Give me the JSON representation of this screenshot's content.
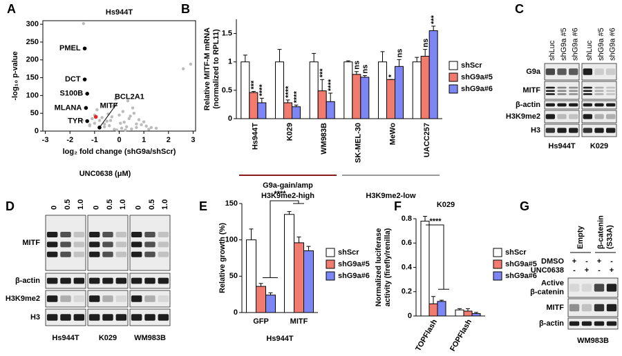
{
  "panel_labels": [
    "A",
    "B",
    "C",
    "D",
    "E",
    "F",
    "G"
  ],
  "chart_data": [
    {
      "type": "scatter",
      "title": "Hs944T",
      "title_color": "#8b1a1a",
      "x_label": "log₂ fold change (shG9a/shScr)",
      "y_label": "-log₁₀ p-value",
      "xlim": [
        -3.1,
        3.1
      ],
      "xticks": [
        -3,
        -2,
        -1,
        0,
        1,
        2,
        3
      ],
      "ylim": [
        0,
        310
      ],
      "yticks": [
        0,
        50,
        100,
        150,
        200,
        250,
        300
      ],
      "series": [
        {
          "color": "#bbbbbb",
          "x": [
            -0.2,
            0.1,
            0.3,
            -0.4,
            0.5,
            -0.6,
            0.2,
            -0.1,
            0.7,
            -0.8,
            0.9,
            -0.3,
            0.4,
            -0.5,
            0.0,
            1.1,
            -1.0,
            0.6,
            -0.7,
            0.8,
            -1.2,
            1.3,
            -0.9,
            0.15,
            -0.25,
            0.45,
            -0.45,
            1.5,
            -1.5,
            0.35,
            -0.15,
            1.0,
            -1.1,
            0.55,
            2.6,
            2.9,
            -1.45,
            -1.2,
            -1.0,
            0.7,
            1.2,
            -0.6,
            0.05,
            -0.35,
            0.25
          ],
          "y": [
            5,
            8,
            12,
            15,
            6,
            20,
            25,
            3,
            10,
            30,
            18,
            40,
            35,
            28,
            45,
            14,
            22,
            50,
            38,
            32,
            18,
            10,
            60,
            55,
            70,
            42,
            48,
            8,
            30,
            85,
            90,
            26,
            35,
            65,
            175,
            188,
            302,
            15,
            45,
            20,
            5,
            12,
            22,
            30,
            3
          ]
        },
        {
          "color": "#000000",
          "x": [
            -1.4,
            -1.4,
            -1.3,
            -1.35,
            -1.3,
            -0.8
          ],
          "y": [
            232,
            145,
            105,
            65,
            28,
            10
          ],
          "point_labels": [
            "PMEL",
            "DCT",
            "S100B",
            "MLANA",
            "TYR",
            "BCL2A1"
          ]
        },
        {
          "color": "#e0261f",
          "x": [
            -0.95
          ],
          "y": [
            40
          ],
          "point_labels": [
            "MITF"
          ]
        }
      ]
    },
    {
      "type": "bar",
      "y_label": [
        "Relative MITF-M mRNA",
        "(normalized to RPL11)"
      ],
      "categories": [
        "Hs944T",
        "K029",
        "WM983B",
        "SK-MEL-30",
        "MeWo",
        "UACC257"
      ],
      "category_colors": [
        "#8b1a1a",
        "#8b1a1a",
        "#8b1a1a",
        "#999999",
        "#999999",
        "#999999"
      ],
      "group_labels": [
        [
          "G9a-gain/amp",
          "H3K9me2-high"
        ],
        [
          "H3K9me2-low"
        ]
      ],
      "group_colors": [
        "#8b1a1a",
        "#999999"
      ],
      "ylim": [
        0,
        1.75
      ],
      "yticks": [
        0,
        0.5,
        1,
        1.5
      ],
      "series": [
        {
          "name": "shScr",
          "color": "#ffffff",
          "values": [
            1.0,
            1.0,
            1.0,
            1.0,
            1.0,
            1.0
          ],
          "errors": [
            0.12,
            0.22,
            0.15,
            0.02,
            0.18,
            0.08
          ]
        },
        {
          "name": "shG9a#5",
          "color": "#f07b6e",
          "values": [
            0.46,
            0.28,
            0.49,
            0.78,
            0.69,
            1.1
          ],
          "errors": [
            0.02,
            0.05,
            0.2,
            0.05,
            0.0,
            0.12
          ],
          "significance": [
            "***",
            "****",
            "***",
            "ns",
            "*",
            "ns"
          ]
        },
        {
          "name": "shG9a#6",
          "color": "#7d86f5",
          "values": [
            0.28,
            0.21,
            0.3,
            0.73,
            0.92,
            1.55
          ],
          "errors": [
            0.08,
            0.03,
            0.15,
            0.03,
            0.12,
            0.08
          ],
          "significance": [
            "****",
            "****",
            "****",
            "ns",
            "ns",
            "***"
          ]
        }
      ]
    },
    {
      "type": "bar",
      "y_label": [
        "Relative growth (%)"
      ],
      "subtitle": "Hs944T",
      "subtitle_color": "#8b1a1a",
      "categories": [
        "GFP",
        "MITF"
      ],
      "annotations": [
        "****"
      ],
      "ylim": [
        0,
        150
      ],
      "yticks": [
        0,
        50,
        100,
        150
      ],
      "series": [
        {
          "name": "shScr",
          "color": "#ffffff",
          "values": [
            100,
            135
          ],
          "errors": [
            15,
            4
          ]
        },
        {
          "name": "shG9a#5",
          "color": "#f07b6e",
          "values": [
            36,
            96
          ],
          "errors": [
            4,
            8
          ]
        },
        {
          "name": "shG9a#6",
          "color": "#7d86f5",
          "values": [
            24,
            85
          ],
          "errors": [
            3,
            6
          ]
        }
      ]
    },
    {
      "type": "bar",
      "title": "K029",
      "title_color": "#8b1a1a",
      "y_label": [
        "Normalized luciferase",
        "activity (firefly/renilla)"
      ],
      "categories": [
        "TOPFlash",
        "FOPFlash"
      ],
      "annotations": [
        "****"
      ],
      "ylim": [
        0,
        0.8
      ],
      "yticks": [
        0,
        0.2,
        0.4,
        0.6,
        0.8
      ],
      "series": [
        {
          "name": "shScr",
          "color": "#ffffff",
          "values": [
            0.78,
            0.05
          ],
          "errors": [
            0.04,
            0.01
          ]
        },
        {
          "name": "shG9a#5",
          "color": "#f07b6e",
          "values": [
            0.1,
            0.04
          ],
          "errors": [
            0.06,
            0.02
          ]
        },
        {
          "name": "shG9a#6",
          "color": "#7d86f5",
          "values": [
            0.12,
            0.02
          ],
          "errors": [
            0.01,
            0.01
          ]
        }
      ]
    }
  ],
  "blots": {
    "C": {
      "columns": [
        "shLuc",
        "shG9a #5",
        "shG9a #6",
        "shLuc",
        "shG9a #5",
        "shG9a #6"
      ],
      "rows": [
        "G9a",
        "MITF",
        "β-actin",
        "H3K9me2",
        "H3"
      ],
      "cell_lines": [
        "Hs944T",
        "K029"
      ]
    },
    "D": {
      "title": "UNC0638 (μM)",
      "columns": [
        "0",
        "0.5",
        "1.0",
        "0",
        "0.5",
        "1.0",
        "0",
        "0.5",
        "1.0"
      ],
      "rows": [
        "MITF",
        "β-actin",
        "H3K9me2",
        "H3"
      ],
      "cell_lines": [
        "Hs944T",
        "K029",
        "WM983B"
      ]
    },
    "G": {
      "treatments": [
        {
          "label": "DMSO",
          "marks": [
            "+",
            "-",
            "+",
            "-"
          ]
        },
        {
          "label": "UNC0638",
          "marks": [
            "-",
            "+",
            "-",
            "+"
          ]
        }
      ],
      "groups": [
        [
          "Empty"
        ],
        [
          "β-catenin",
          "(S33A)"
        ]
      ],
      "rows": [
        [
          "Active",
          "β-catenin"
        ],
        [
          "MITF"
        ],
        [
          "β-actin"
        ]
      ],
      "cell_lines": [
        "WM983B"
      ]
    }
  }
}
